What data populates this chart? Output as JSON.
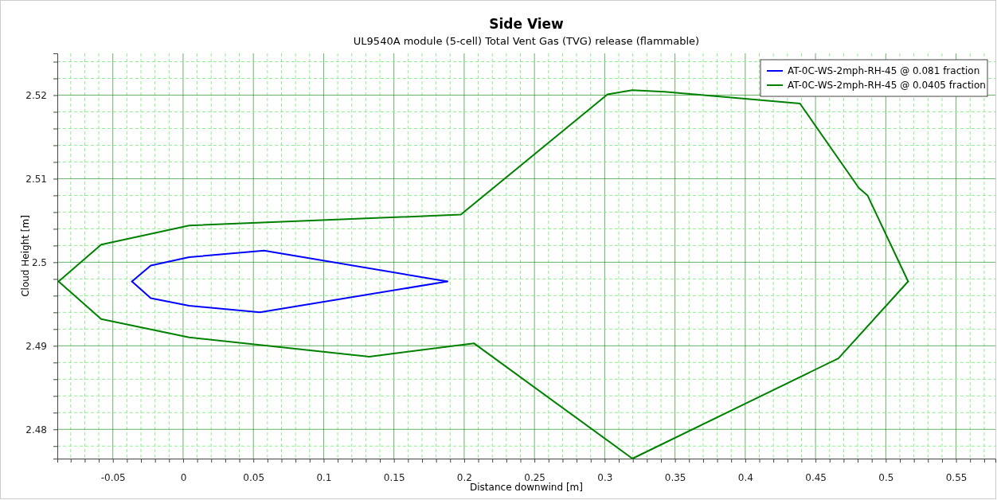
{
  "chart_data": {
    "type": "line",
    "title": "Side View",
    "subtitle": "UL9540A module (5-cell) Total Vent Gas (TVG) release (flammable)",
    "xlabel": "Distance downwind [m]",
    "ylabel": "Cloud Height [m]",
    "xlim": [
      -0.0895,
      0.578
    ],
    "ylim": [
      2.4765,
      2.525
    ],
    "xticks": [
      {
        "value": -0.08,
        "label": null
      },
      {
        "value": -0.07,
        "label": null
      },
      {
        "value": -0.06,
        "label": null
      },
      -0.05,
      {
        "value": -0.04,
        "label": null
      },
      {
        "value": -0.03,
        "label": null
      },
      {
        "value": -0.02,
        "label": null
      },
      {
        "value": -0.01,
        "label": null
      },
      0,
      {
        "value": 0.01,
        "label": null
      },
      {
        "value": 0.02,
        "label": null
      },
      {
        "value": 0.03,
        "label": null
      },
      {
        "value": 0.04,
        "label": null
      },
      0.05,
      {
        "value": 0.06,
        "label": null
      },
      {
        "value": 0.07,
        "label": null
      },
      {
        "value": 0.08,
        "label": null
      },
      {
        "value": 0.09,
        "label": null
      },
      0.1,
      {
        "value": 0.11,
        "label": null
      },
      {
        "value": 0.12,
        "label": null
      },
      {
        "value": 0.13,
        "label": null
      },
      {
        "value": 0.14,
        "label": null
      },
      0.15,
      {
        "value": 0.16,
        "label": null
      },
      {
        "value": 0.17,
        "label": null
      },
      {
        "value": 0.18,
        "label": null
      },
      {
        "value": 0.19,
        "label": null
      },
      0.2,
      {
        "value": 0.21,
        "label": null
      },
      {
        "value": 0.22,
        "label": null
      },
      {
        "value": 0.23,
        "label": null
      },
      {
        "value": 0.24,
        "label": null
      },
      0.25,
      {
        "value": 0.26,
        "label": null
      },
      {
        "value": 0.27,
        "label": null
      },
      {
        "value": 0.28,
        "label": null
      },
      {
        "value": 0.29,
        "label": null
      },
      0.3,
      {
        "value": 0.31,
        "label": null
      },
      {
        "value": 0.32,
        "label": null
      },
      {
        "value": 0.33,
        "label": null
      },
      {
        "value": 0.34,
        "label": null
      },
      0.35,
      {
        "value": 0.36,
        "label": null
      },
      {
        "value": 0.37,
        "label": null
      },
      {
        "value": 0.38,
        "label": null
      },
      {
        "value": 0.39,
        "label": null
      },
      0.4,
      {
        "value": 0.41,
        "label": null
      },
      {
        "value": 0.42,
        "label": null
      },
      {
        "value": 0.43,
        "label": null
      },
      {
        "value": 0.44,
        "label": null
      },
      0.45,
      {
        "value": 0.46,
        "label": null
      },
      {
        "value": 0.47,
        "label": null
      },
      {
        "value": 0.48,
        "label": null
      },
      {
        "value": 0.49,
        "label": null
      },
      0.5,
      {
        "value": 0.51,
        "label": null
      },
      {
        "value": 0.52,
        "label": null
      },
      {
        "value": 0.53,
        "label": null
      },
      {
        "value": 0.54,
        "label": null
      },
      0.55,
      {
        "value": 0.56,
        "label": null
      },
      {
        "value": 0.57,
        "label": null
      }
    ],
    "yticks": [
      {
        "value": 2.478,
        "label": null
      },
      2.48,
      {
        "value": 2.482,
        "label": null
      },
      {
        "value": 2.484,
        "label": null
      },
      {
        "value": 2.486,
        "label": null
      },
      {
        "value": 2.488,
        "label": null
      },
      2.49,
      {
        "value": 2.492,
        "label": null
      },
      {
        "value": 2.494,
        "label": null
      },
      {
        "value": 2.496,
        "label": null
      },
      {
        "value": 2.498,
        "label": null
      },
      2.5,
      {
        "value": 2.502,
        "label": null
      },
      {
        "value": 2.504,
        "label": null
      },
      {
        "value": 2.506,
        "label": null
      },
      {
        "value": 2.508,
        "label": null
      },
      2.51,
      {
        "value": 2.512,
        "label": null
      },
      {
        "value": 2.514,
        "label": null
      },
      {
        "value": 2.516,
        "label": null
      },
      {
        "value": 2.518,
        "label": null
      },
      2.52,
      {
        "value": 2.522,
        "label": null
      },
      {
        "value": 2.524,
        "label": null
      }
    ],
    "grid": true,
    "legend": "top right",
    "line_style": "solid",
    "series": [
      {
        "name": "AT-0C-WS-2mph-RH-45 @ 0.081 fraction",
        "color": "#0000ff",
        "x": [
          -0.0364,
          -0.023,
          0.0043,
          0.0576,
          0.188
        ],
        "values": [
          2.4977,
          2.4996,
          2.5006,
          2.5014,
          2.4977
        ]
      },
      {
        "color": "#0000ff",
        "x": [
          -0.0364,
          -0.023,
          0.0043,
          0.0546,
          0.188
        ],
        "values": [
          2.4977,
          2.4957,
          2.4948,
          2.494,
          2.4977
        ]
      },
      {
        "name": "AT-0C-WS-2mph-RH-45 @ 0.0405 fraction",
        "color": "#008000",
        "x": [
          -0.0886,
          -0.0583,
          0.0043,
          0.1976,
          0.302,
          0.3196,
          0.3426,
          0.4389,
          0.4808,
          0.487,
          0.5159
        ],
        "values": [
          2.4977,
          2.5021,
          2.5044,
          2.5057,
          2.5201,
          2.5206,
          2.5204,
          2.519,
          2.5089,
          2.508,
          2.4977
        ]
      },
      {
        "color": "#008000",
        "x": [
          -0.0886,
          -0.0583,
          0.0043,
          0.1325,
          0.2069,
          0.3197,
          0.4663,
          0.5159
        ],
        "values": [
          2.4977,
          2.4932,
          2.491,
          2.4887,
          2.4903,
          2.4765,
          2.4885,
          2.4977
        ]
      }
    ]
  }
}
